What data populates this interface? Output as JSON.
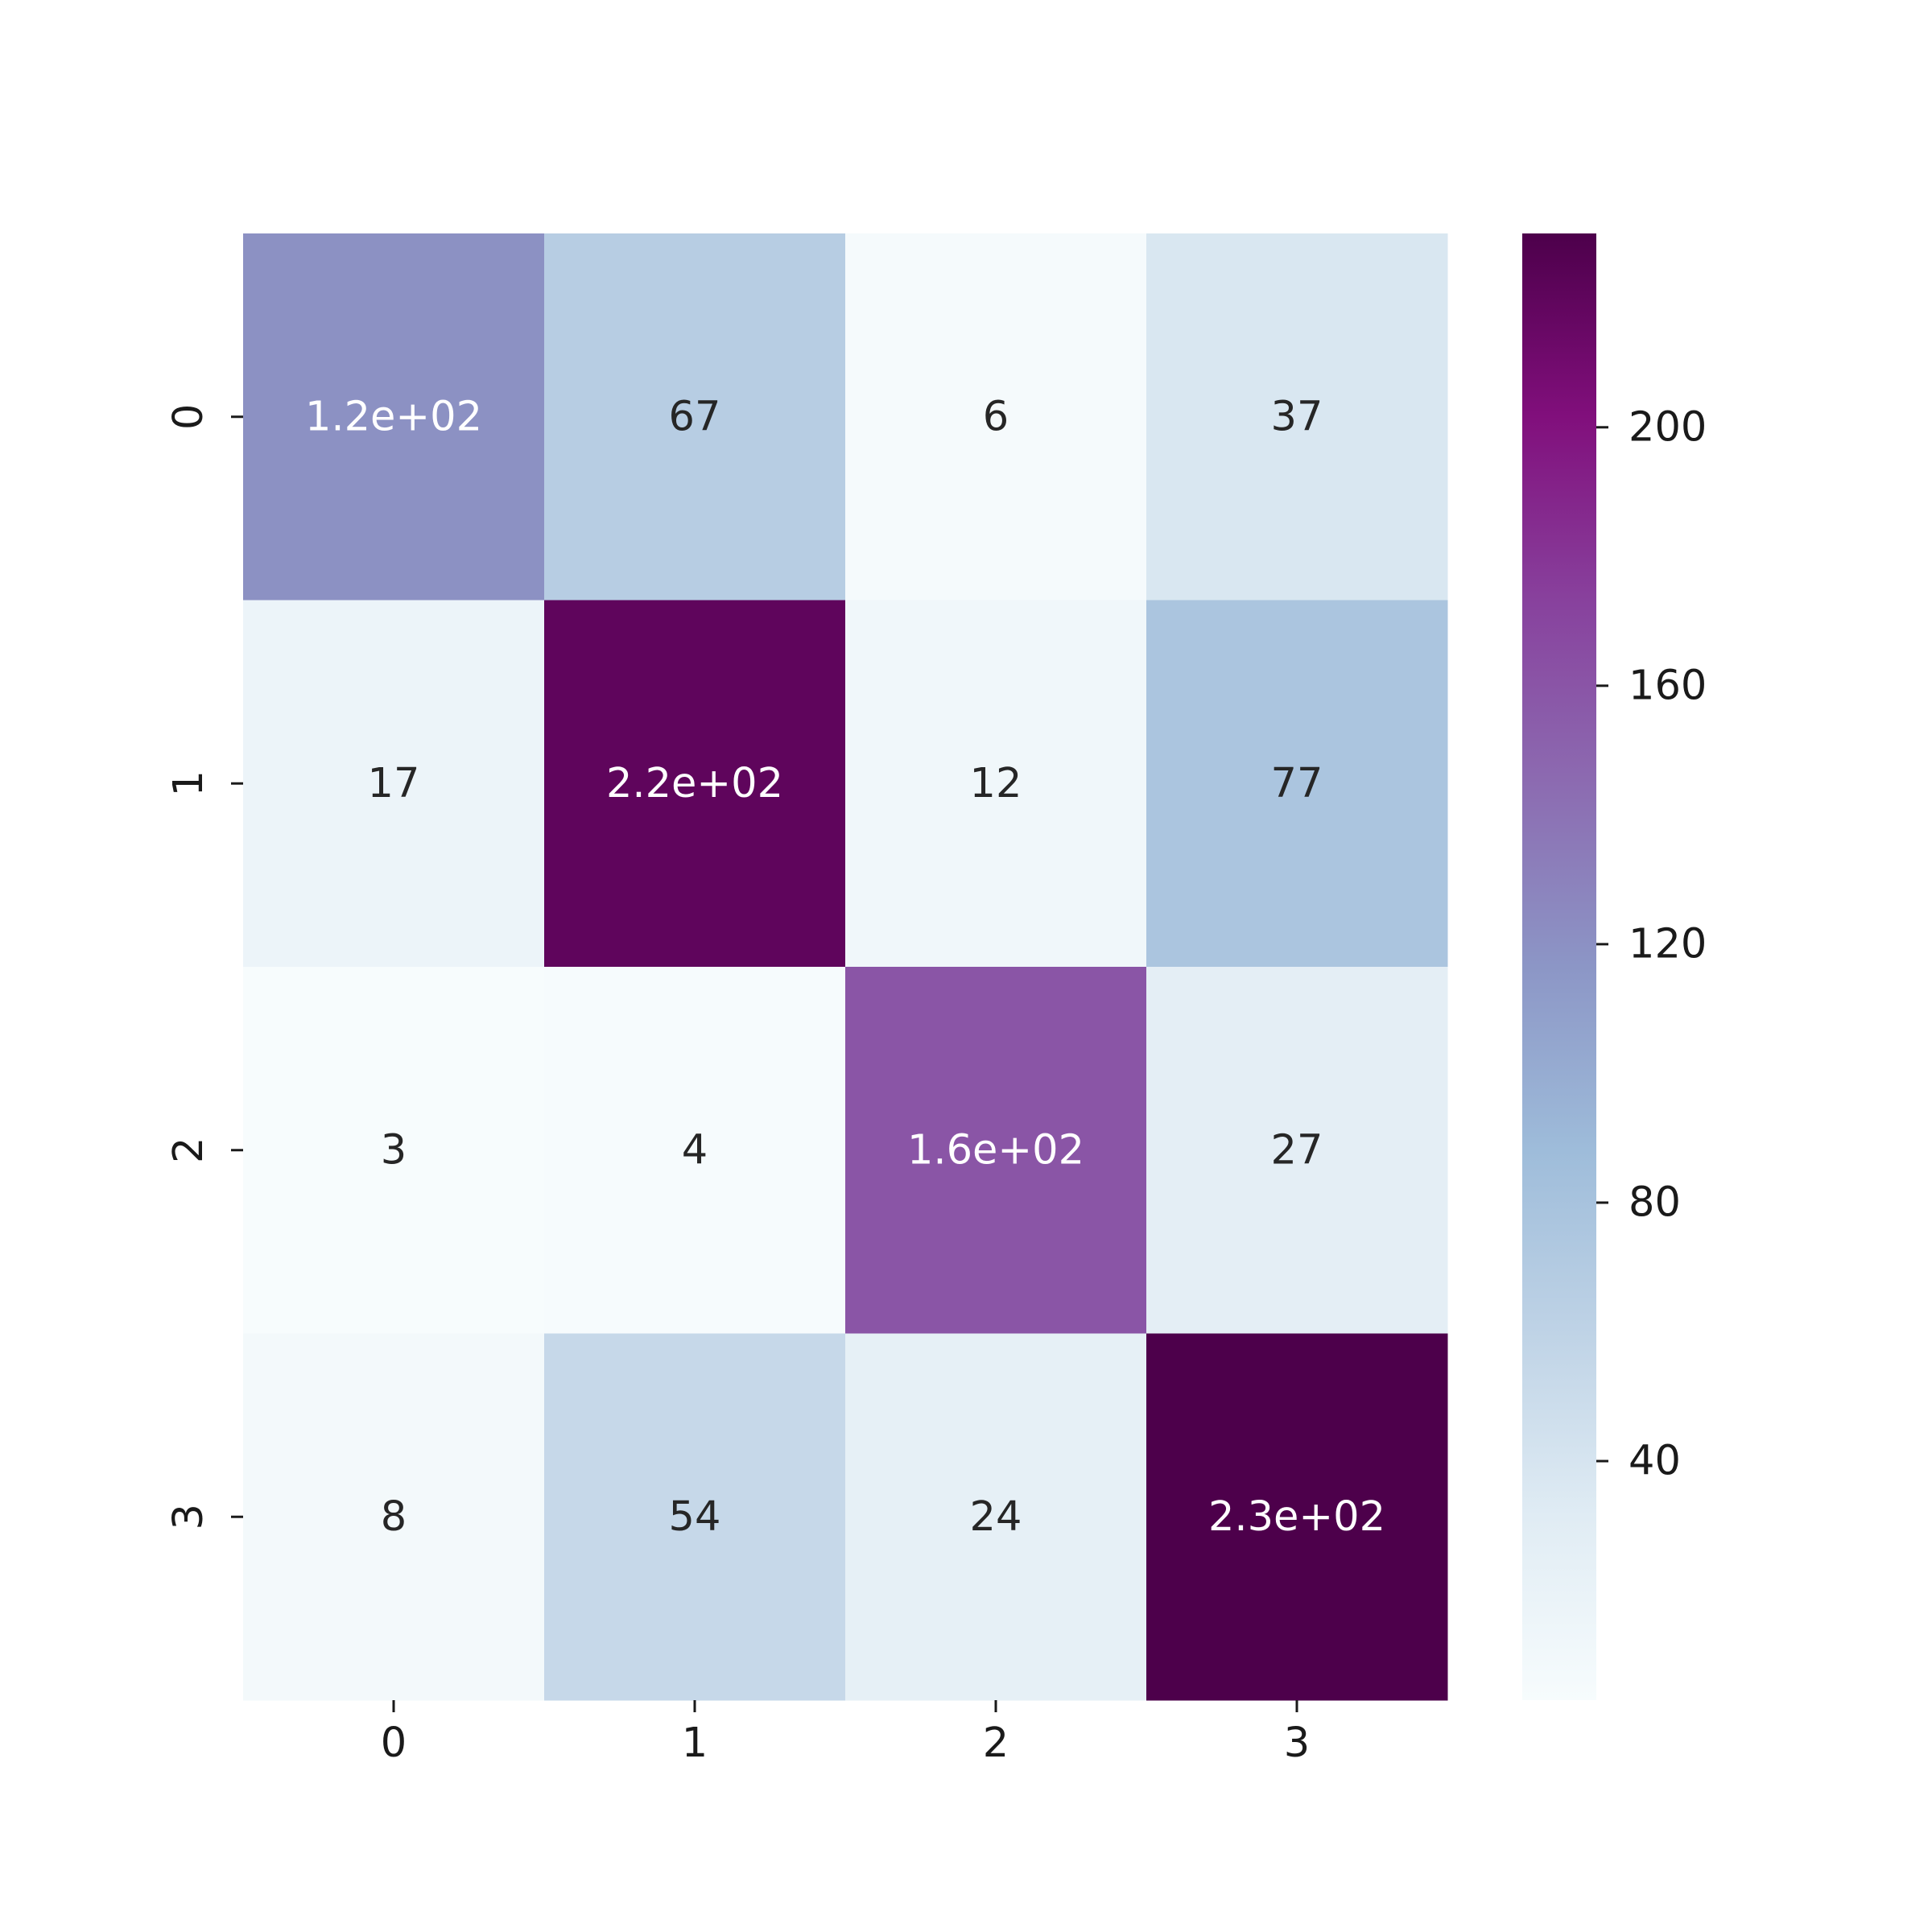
{
  "chart_data": {
    "type": "heatmap",
    "title": "",
    "xlabel": "",
    "ylabel": "",
    "x_ticks": [
      "0",
      "1",
      "2",
      "3"
    ],
    "y_ticks": [
      "0",
      "1",
      "2",
      "3"
    ],
    "values": [
      [
        120,
        67,
        6,
        37
      ],
      [
        17,
        220,
        12,
        77
      ],
      [
        3,
        4,
        160,
        27
      ],
      [
        8,
        54,
        24,
        230
      ]
    ],
    "annotations": [
      [
        "1.2e+02",
        "67",
        "6",
        "37"
      ],
      [
        "17",
        "2.2e+02",
        "12",
        "77"
      ],
      [
        "3",
        "4",
        "1.6e+02",
        "27"
      ],
      [
        "8",
        "54",
        "24",
        "2.3e+02"
      ]
    ],
    "colormap": "BuPu",
    "colormap_stops": [
      "#f7fcfd",
      "#e0ecf4",
      "#bfd3e6",
      "#9ebcda",
      "#8c96c6",
      "#8c6bb1",
      "#88419d",
      "#810f7c",
      "#4d004b"
    ],
    "colorbar": {
      "range": [
        3,
        230
      ],
      "ticks": [
        40,
        80,
        120,
        160,
        200
      ],
      "tick_labels": [
        "40",
        "80",
        "120",
        "160",
        "200"
      ],
      "position": "right"
    },
    "light_text_color": "#ffffff",
    "dark_text_color": "#262626"
  }
}
